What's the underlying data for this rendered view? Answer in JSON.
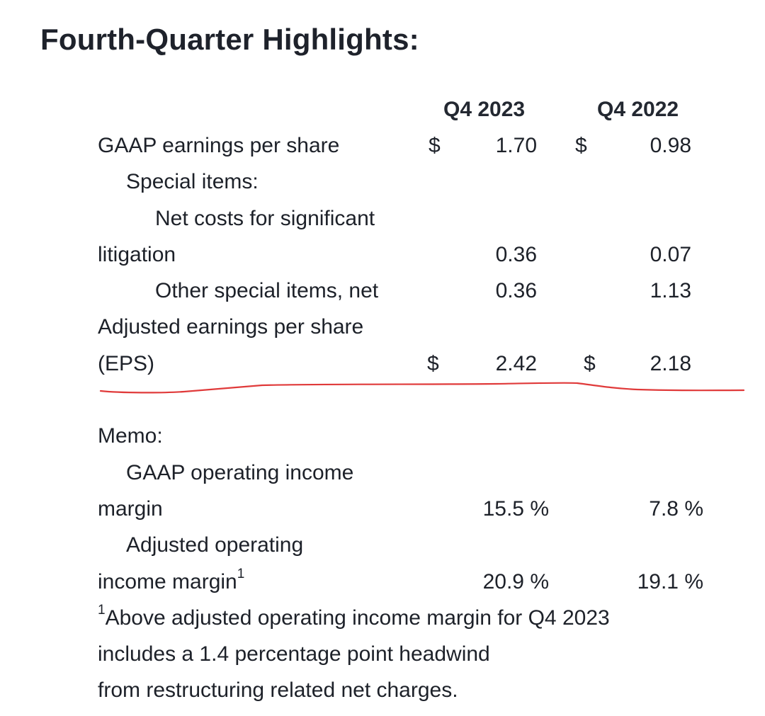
{
  "title": "Fourth-Quarter Highlights:",
  "columns": {
    "q4_2023": "Q4 2023",
    "q4_2022": "Q4 2022"
  },
  "currency_symbol": "$",
  "rows": {
    "gaap_eps": {
      "label": "GAAP earnings per share",
      "q4_2023": "1.70",
      "q4_2022": "0.98"
    },
    "special_items": {
      "label": "Special items:"
    },
    "net_costs": {
      "label_line1": "Net costs for significant",
      "label_line2": "litigation",
      "q4_2023": "0.36",
      "q4_2022": "0.07"
    },
    "other_special": {
      "label": "Other special items, net",
      "q4_2023": "0.36",
      "q4_2022": "1.13"
    },
    "adjusted_eps": {
      "label_line1": "Adjusted earnings per share",
      "label_line2": "(EPS)",
      "q4_2023": "2.42",
      "q4_2022": "2.18"
    },
    "memo": {
      "label": "Memo:"
    },
    "gaap_margin": {
      "label_line1": "GAAP operating income",
      "label_line2": "margin",
      "q4_2023": "15.5 %",
      "q4_2022": "7.8 %"
    },
    "adjusted_margin": {
      "label_line1": "Adjusted operating",
      "label_line2": "income margin",
      "footnote_mark": "1",
      "q4_2023": "20.9 %",
      "q4_2022": "19.1 %"
    }
  },
  "footnote": {
    "mark": "1",
    "line1": "Above adjusted operating income margin for Q4 2023",
    "line2": "includes a 1.4 percentage point headwind",
    "line3": "from restructuring related net charges."
  },
  "annotation_color": "#e03a3a"
}
